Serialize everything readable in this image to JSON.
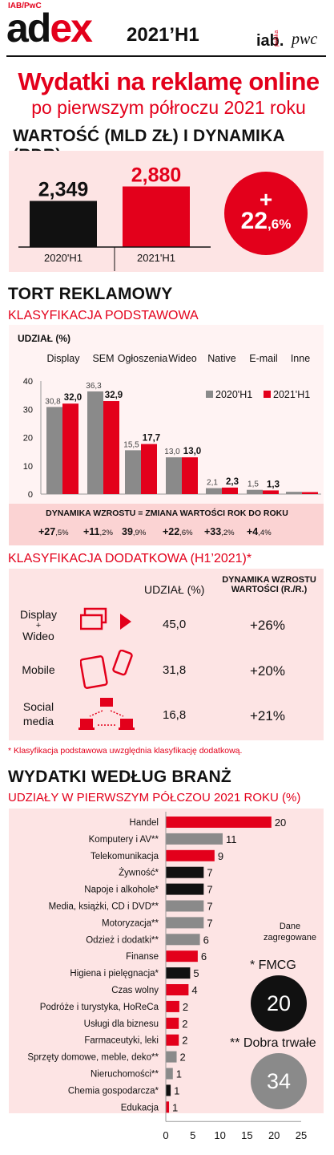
{
  "header": {
    "source": "IAB/PwC",
    "brand_dark": "ad",
    "brand_red": "ex",
    "period": "2021’H1",
    "logo_iab": "iab.",
    "logo_iab_country": "polska",
    "logo_pwc": "pwc"
  },
  "title": {
    "line1": "Wydatki na reklamę online",
    "line2": "po pierwszym półroczu 2021 roku"
  },
  "value_section": {
    "heading": "WARTOŚĆ (MLD ZŁ) I DYNAMIKA (RDR)",
    "growth_sign": "+",
    "growth_main": "22",
    "growth_decimal": ",6%"
  },
  "pie_section": {
    "heading": "TORT REKLAMOWY",
    "subheading": "KLASYFIKACJA PODSTAWOWA",
    "chart_label": "UDZIAŁ (%)",
    "dynamics_title": "DYNAMIKA WZROSTU = ZMIANA WARTOŚCI ROK DO ROKU",
    "dynamics": [
      {
        "main": "+27",
        "dec": ",5%"
      },
      {
        "main": "+11",
        "dec": ",2%"
      },
      {
        "main": "39",
        "dec": ",9%"
      },
      {
        "main": "+22",
        "dec": ",6%"
      },
      {
        "main": "+33",
        "dec": ",2%"
      },
      {
        "main": "+4",
        "dec": ",4%"
      }
    ]
  },
  "extra_section": {
    "heading": "KLASYFIKACJA DODATKOWA (H1’2021)*",
    "col_share": "UDZIAŁ (%)",
    "col_dynamics_1": "DYNAMIKA WZROSTU",
    "col_dynamics_2": "WARTOŚCI (R./R.)",
    "rows": [
      {
        "label_1": "Display",
        "label_2": "+",
        "label_3": "Wideo",
        "icon": "display-video-icon",
        "share": "45,0",
        "dynamics": "+26%"
      },
      {
        "label_1": "Mobile",
        "label_2": "",
        "label_3": "",
        "icon": "mobile-devices-icon",
        "share": "31,8",
        "dynamics": "+20%"
      },
      {
        "label_1": "Social",
        "label_2": "media",
        "label_3": "",
        "icon": "social-network-icon",
        "share": "16,8",
        "dynamics": "+21%"
      }
    ],
    "footnote": "* Klasyfikacja podstawowa uwzględnia klasyfikację dodatkową."
  },
  "industry_section": {
    "heading": "WYDATKI WEDŁUG BRANŻ",
    "subheading": "UDZIAŁY W PIERWSZYM PÓŁCZOU 2021 ROKU (%)",
    "aggregated_1": "Dane",
    "aggregated_2": "zagregowane",
    "fmcg_label": "* FMCG",
    "fmcg_value": "20",
    "durable_label": "** Dobra trwałe",
    "durable_value": "34"
  },
  "colors": {
    "red": "#e3001b",
    "black": "#111111",
    "gray": "#8a8a8a",
    "pink": "#fde4e4"
  },
  "chart_data": [
    {
      "type": "bar",
      "categories": [
        "2020'H1",
        "2021'H1"
      ],
      "values": [
        2.349,
        2.88
      ],
      "value_labels": [
        "2,349",
        "2,880"
      ],
      "colors": [
        "#111111",
        "#e3001b"
      ]
    },
    {
      "type": "bar",
      "categories": [
        "Display",
        "SEM",
        "Ogłoszenia",
        "Wideo",
        "Native",
        "E-mail",
        "Inne"
      ],
      "series": [
        {
          "name": "2020'H1",
          "values": [
            30.8,
            36.3,
            15.5,
            13.0,
            2.1,
            1.5,
            0.8
          ],
          "labels": [
            "30,8",
            "36,3",
            "15,5",
            "13,0",
            "2,1",
            "1,5",
            ""
          ]
        },
        {
          "name": "2021'H1",
          "values": [
            32.0,
            32.9,
            17.7,
            13.0,
            2.3,
            1.3,
            0.7
          ],
          "labels": [
            "32,0",
            "32,9",
            "17,7",
            "13,0",
            "2,3",
            "1,3",
            ""
          ]
        }
      ],
      "yticks": [
        "0",
        "10",
        "20",
        "30",
        "40"
      ],
      "ylim": [
        0,
        40
      ],
      "legend": "top-right"
    },
    {
      "type": "bar",
      "orientation": "horizontal",
      "categories": [
        "Handel",
        "Komputery i AV**",
        "Telekomunikacja",
        "Żywność*",
        "Napoje i alkohole*",
        "Media, książki, CD i DVD**",
        "Motoryzacja**",
        "Odzież i dodatki**",
        "Finanse",
        "Higiena i pielęgnacja*",
        "Czas wolny",
        "Podróże i turystyka, HoReCa",
        "Usługi dla biznesu",
        "Farmaceutyki, leki",
        "Sprzęty domowe, meble, deko**",
        "Nieruchomości**",
        "Chemia gospodarcza*",
        "Edukacja"
      ],
      "values": [
        20,
        11,
        9,
        7,
        7,
        7,
        7,
        6,
        6,
        5,
        4,
        2,
        2,
        2,
        2,
        1,
        1,
        1
      ],
      "bar_lengths": [
        19.5,
        10.5,
        9.0,
        7.0,
        7.0,
        7.0,
        7.0,
        6.3,
        5.9,
        4.5,
        4.2,
        2.5,
        2.4,
        2.4,
        2.0,
        1.3,
        0.9,
        0.6
      ],
      "groups": [
        "other",
        "durable",
        "other",
        "fmcg",
        "fmcg",
        "durable",
        "durable",
        "durable",
        "other",
        "fmcg",
        "other",
        "other",
        "other",
        "other",
        "durable",
        "durable",
        "fmcg",
        "other"
      ],
      "xticks": [
        "0",
        "5",
        "10",
        "15",
        "20",
        "25"
      ],
      "xlim": [
        0,
        25
      ]
    }
  ]
}
